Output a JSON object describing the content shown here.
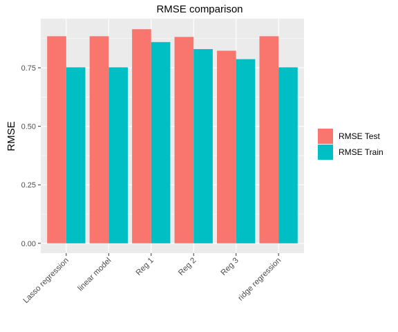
{
  "chart_data": {
    "type": "bar",
    "title": "RMSE comparison",
    "xlabel": "",
    "ylabel": "RMSE",
    "categories": [
      "Lasso regression",
      "linear model",
      "Reg 1",
      "Reg 2",
      "Reg 3",
      "ridge regression"
    ],
    "series": [
      {
        "name": "RMSE Test",
        "color": "#F8766D",
        "values": [
          0.885,
          0.885,
          0.915,
          0.882,
          0.823,
          0.885
        ]
      },
      {
        "name": "RMSE Train",
        "color": "#00BFC4",
        "values": [
          0.752,
          0.752,
          0.86,
          0.83,
          0.787,
          0.752
        ]
      }
    ],
    "ylim": [
      -0.042,
      0.96
    ],
    "yticks": [
      0.0,
      0.25,
      0.5,
      0.75
    ],
    "ytick_labels": [
      "0.00",
      "0.25",
      "0.50",
      "0.75"
    ],
    "legend_position": "right",
    "grid": true,
    "panel_background": "#EBEBEB",
    "grid_color": "#FFFFFF"
  }
}
